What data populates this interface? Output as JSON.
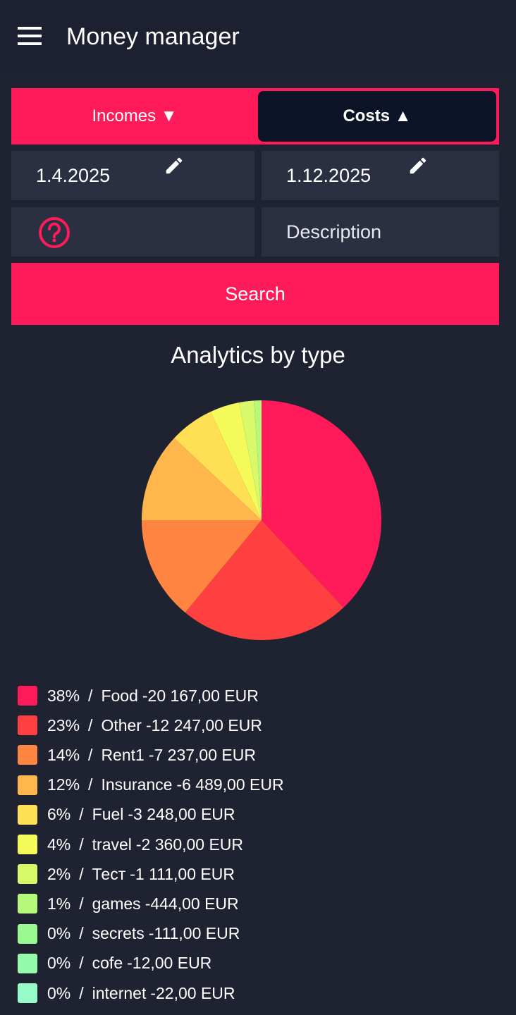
{
  "header": {
    "title": "Money manager"
  },
  "tabs": [
    {
      "label": "Incomes ▼"
    },
    {
      "label": "Costs ▲"
    }
  ],
  "filters": {
    "date_from": "1.4.2025",
    "date_to": "1.12.2025",
    "description_placeholder": "Description"
  },
  "search_button": "Search",
  "chart_data": {
    "type": "pie",
    "title": "Analytics by type",
    "categories": [
      "Food",
      "Other",
      "Rent1",
      "Insurance",
      "Fuel",
      "travel",
      "Тест",
      "games",
      "secrets",
      "cofe",
      "internet"
    ],
    "values": [
      38,
      23,
      14,
      12,
      6,
      4,
      2,
      1,
      0,
      0,
      0
    ],
    "value_labels": [
      "38%",
      "23%",
      "14%",
      "12%",
      "6%",
      "4%",
      "2%",
      "1%",
      "0%",
      "0%",
      "0%"
    ],
    "amounts": [
      "-20 167,00 EUR",
      "-12 247,00 EUR",
      "-7 237,00 EUR",
      "-6 489,00 EUR",
      "-3 248,00 EUR",
      "-2 360,00 EUR",
      "-1 111,00 EUR",
      "-444,00 EUR",
      "-111,00 EUR",
      "-12,00 EUR",
      "-22,00 EUR"
    ],
    "separator": "/",
    "colors": [
      "#ff1a5a",
      "#ff4040",
      "#ff8540",
      "#ffb64d",
      "#ffe055",
      "#f4fa5a",
      "#d8fa6a",
      "#b6f97a",
      "#9af890",
      "#94fbaa",
      "#96fbc8"
    ]
  }
}
